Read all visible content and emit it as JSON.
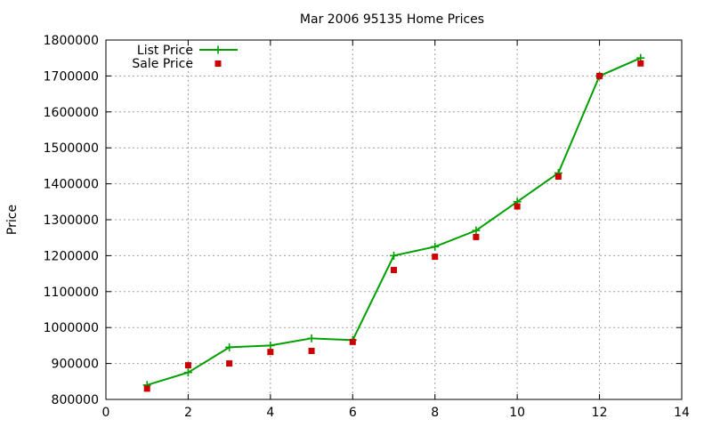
{
  "chart_data": {
    "type": "line",
    "title": "Mar 2006 95135 Home Prices",
    "xlabel": "",
    "ylabel": "Price",
    "xlim": [
      0,
      14
    ],
    "ylim": [
      800000,
      1800000
    ],
    "x_ticks": [
      0,
      2,
      4,
      6,
      8,
      10,
      12,
      14
    ],
    "y_ticks": [
      800000,
      900000,
      1000000,
      1100000,
      1200000,
      1300000,
      1400000,
      1500000,
      1600000,
      1700000,
      1800000
    ],
    "grid": true,
    "legend_position": "top-left",
    "series": [
      {
        "name": "List Price",
        "style": "line+plus",
        "color": "#00a000",
        "points": [
          [
            1,
            840000
          ],
          [
            2,
            875000
          ],
          [
            3,
            945000
          ],
          [
            4,
            950000
          ],
          [
            5,
            970000
          ],
          [
            6,
            965000
          ],
          [
            7,
            1200000
          ],
          [
            8,
            1225000
          ],
          [
            9,
            1270000
          ],
          [
            10,
            1350000
          ],
          [
            11,
            1430000
          ],
          [
            12,
            1700000
          ],
          [
            13,
            1750000
          ]
        ]
      },
      {
        "name": "Sale Price",
        "style": "square",
        "color": "#cc0000",
        "points": [
          [
            1,
            830000
          ],
          [
            2,
            895000
          ],
          [
            3,
            900000
          ],
          [
            4,
            932000
          ],
          [
            5,
            935000
          ],
          [
            6,
            960000
          ],
          [
            7,
            1160000
          ],
          [
            8,
            1197000
          ],
          [
            9,
            1252000
          ],
          [
            10,
            1337000
          ],
          [
            11,
            1420000
          ],
          [
            12,
            1700000
          ],
          [
            13,
            1735000
          ]
        ]
      }
    ]
  }
}
